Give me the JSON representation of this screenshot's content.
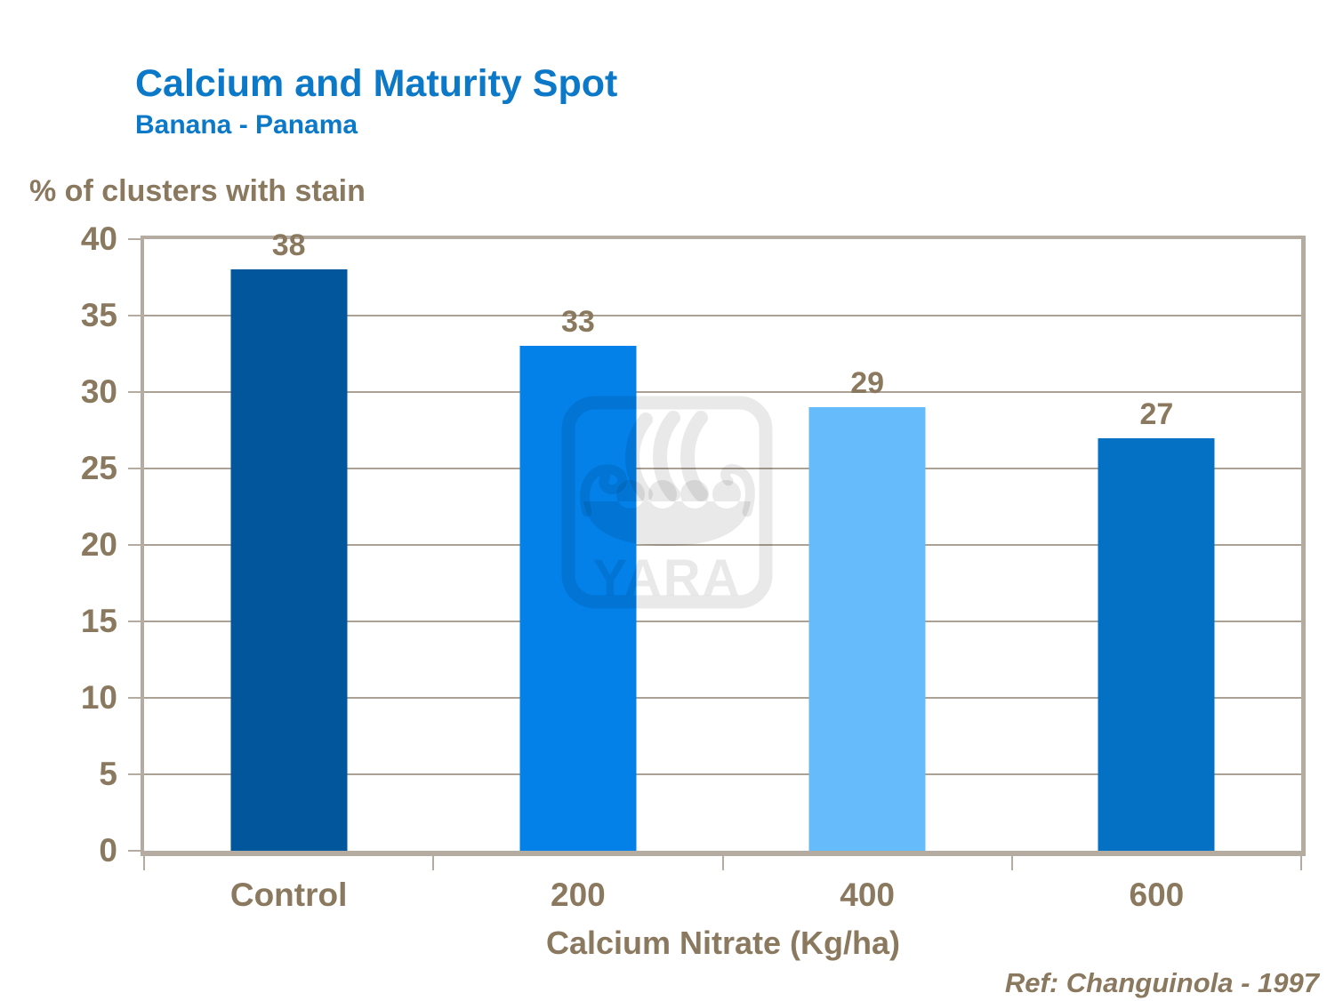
{
  "header": {
    "title": "Calcium and Maturity Spot",
    "subtitle": "Banana - Panama"
  },
  "watermark": {
    "text": "YARA"
  },
  "footer": {
    "reference": "Ref: Changuinola - 1997"
  },
  "chart_data": {
    "type": "bar",
    "title": "Calcium and Maturity Spot",
    "subtitle": "Banana - Panama",
    "ylabel": "% of clusters with stain",
    "xlabel": "Calcium Nitrate (Kg/ha)",
    "categories": [
      "Control",
      "200",
      "400",
      "600"
    ],
    "values": [
      38,
      33,
      29,
      27
    ],
    "ylim": [
      0,
      40
    ],
    "yticks": [
      0,
      5,
      10,
      15,
      20,
      25,
      30,
      35,
      40
    ],
    "grid": "horizontal",
    "legend": "none",
    "bar_colors": [
      "#02569B",
      "#0381E8",
      "#66BBFB",
      "#0471C4"
    ],
    "annotation": "Ref: Changuinola - 1997"
  },
  "colors": {
    "title_blue": "#0B78C8",
    "axis_text_brown": "#8A795E",
    "axis_line_tan": "#B5ACA1",
    "gridline_tan": "#ABA195",
    "watermark_gray": "#E9E9E9"
  }
}
